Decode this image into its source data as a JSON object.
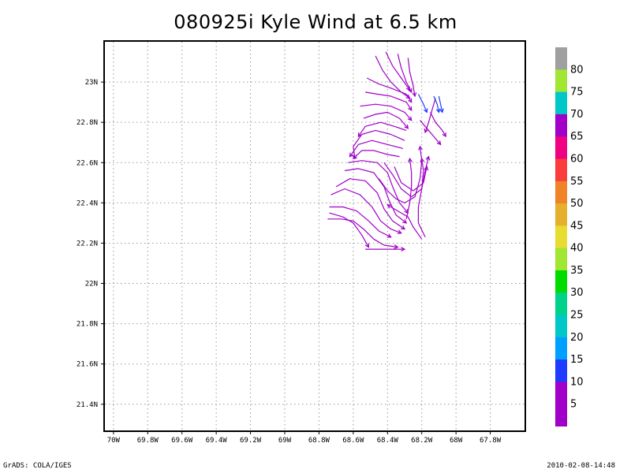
{
  "title": "080925i Kyle Wind at 6.5 km",
  "footer": {
    "left": "GrADS: COLA/IGES",
    "right": "2010-02-08-14:48"
  },
  "map": {
    "lon_range": [
      -70.05,
      -67.6
    ],
    "lat_range": [
      21.27,
      23.2
    ],
    "lon_ticks": [
      {
        "v": -70.0,
        "label": "70W"
      },
      {
        "v": -69.8,
        "label": "69.8W"
      },
      {
        "v": -69.6,
        "label": "69.6W"
      },
      {
        "v": -69.4,
        "label": "69.4W"
      },
      {
        "v": -69.2,
        "label": "69.2W"
      },
      {
        "v": -69.0,
        "label": "69W"
      },
      {
        "v": -68.8,
        "label": "68.8W"
      },
      {
        "v": -68.6,
        "label": "68.6W"
      },
      {
        "v": -68.4,
        "label": "68.4W"
      },
      {
        "v": -68.2,
        "label": "68.2W"
      },
      {
        "v": -68.0,
        "label": "68W"
      },
      {
        "v": -67.8,
        "label": "67.8W"
      }
    ],
    "lat_ticks": [
      {
        "v": 23.0,
        "label": "23N"
      },
      {
        "v": 22.8,
        "label": "22.8N"
      },
      {
        "v": 22.6,
        "label": "22.6N"
      },
      {
        "v": 22.4,
        "label": "22.4N"
      },
      {
        "v": 22.2,
        "label": "22.2N"
      },
      {
        "v": 22.0,
        "label": "22N"
      },
      {
        "v": 21.8,
        "label": "21.8N"
      },
      {
        "v": 21.6,
        "label": "21.6N"
      },
      {
        "v": 21.4,
        "label": "21.4N"
      }
    ],
    "grid": "dotted"
  },
  "colorbar": {
    "labels": [
      "80",
      "75",
      "70",
      "65",
      "60",
      "55",
      "50",
      "45",
      "40",
      "35",
      "30",
      "25",
      "20",
      "15",
      "10",
      "5"
    ],
    "colors": [
      "#a0a0a0",
      "#a0e632",
      "#00c8c8",
      "#a000c8",
      "#f00082",
      "#fa3c3c",
      "#f08228",
      "#e6af2d",
      "#e6dc32",
      "#a0e632",
      "#00dc00",
      "#00d28c",
      "#00c8c8",
      "#00a0ff",
      "#1e3cff",
      "#a000c8"
    ]
  },
  "streamlines": [
    {
      "color": "#a000c8",
      "points": [
        [
          -68.41,
          23.15
        ],
        [
          -68.37,
          23.08
        ],
        [
          -68.32,
          23.02
        ],
        [
          -68.27,
          22.96
        ]
      ]
    },
    {
      "color": "#a000c8",
      "points": [
        [
          -68.47,
          23.13
        ],
        [
          -68.43,
          23.06
        ],
        [
          -68.38,
          23.0
        ],
        [
          -68.32,
          22.95
        ],
        [
          -68.27,
          22.92
        ]
      ]
    },
    {
      "color": "#a000c8",
      "points": [
        [
          -68.34,
          23.14
        ],
        [
          -68.32,
          23.07
        ],
        [
          -68.29,
          23.0
        ],
        [
          -68.26,
          22.95
        ]
      ]
    },
    {
      "color": "#a000c8",
      "points": [
        [
          -68.28,
          23.12
        ],
        [
          -68.27,
          23.05
        ],
        [
          -68.25,
          22.98
        ],
        [
          -68.24,
          22.93
        ]
      ]
    },
    {
      "color": "#a000c8",
      "points": [
        [
          -68.52,
          23.02
        ],
        [
          -68.45,
          22.99
        ],
        [
          -68.38,
          22.97
        ],
        [
          -68.29,
          22.94
        ],
        [
          -68.26,
          22.9
        ]
      ]
    },
    {
      "color": "#a000c8",
      "points": [
        [
          -68.53,
          22.95
        ],
        [
          -68.46,
          22.94
        ],
        [
          -68.38,
          22.93
        ],
        [
          -68.29,
          22.9
        ],
        [
          -68.26,
          22.86
        ]
      ]
    },
    {
      "color": "#a000c8",
      "points": [
        [
          -68.56,
          22.88
        ],
        [
          -68.47,
          22.89
        ],
        [
          -68.38,
          22.88
        ],
        [
          -68.3,
          22.85
        ],
        [
          -68.26,
          22.81
        ]
      ]
    },
    {
      "color": "#a000c8",
      "points": [
        [
          -68.54,
          22.82
        ],
        [
          -68.47,
          22.84
        ],
        [
          -68.4,
          22.85
        ],
        [
          -68.33,
          22.82
        ],
        [
          -68.28,
          22.77
        ]
      ]
    },
    {
      "color": "#a000c8",
      "points": [
        [
          -68.29,
          22.76
        ],
        [
          -68.36,
          22.78
        ],
        [
          -68.44,
          22.8
        ],
        [
          -68.53,
          22.78
        ],
        [
          -68.57,
          22.73
        ]
      ]
    },
    {
      "color": "#a000c8",
      "points": [
        [
          -68.3,
          22.71
        ],
        [
          -68.38,
          22.74
        ],
        [
          -68.47,
          22.76
        ],
        [
          -68.55,
          22.74
        ],
        [
          -68.6,
          22.68
        ],
        [
          -68.59,
          22.62
        ]
      ]
    },
    {
      "color": "#a000c8",
      "points": [
        [
          -68.31,
          22.67
        ],
        [
          -68.4,
          22.69
        ],
        [
          -68.49,
          22.71
        ],
        [
          -68.57,
          22.69
        ],
        [
          -68.62,
          22.63
        ]
      ]
    },
    {
      "color": "#a000c8",
      "points": [
        [
          -68.33,
          22.63
        ],
        [
          -68.4,
          22.64
        ],
        [
          -68.48,
          22.66
        ],
        [
          -68.55,
          22.66
        ],
        [
          -68.6,
          22.62
        ]
      ]
    },
    {
      "color": "#a000c8",
      "points": [
        [
          -68.63,
          22.6
        ],
        [
          -68.55,
          22.61
        ],
        [
          -68.46,
          22.6
        ],
        [
          -68.4,
          22.55
        ],
        [
          -68.37,
          22.48
        ],
        [
          -68.33,
          22.4
        ],
        [
          -68.28,
          22.35
        ]
      ]
    },
    {
      "color": "#a000c8",
      "points": [
        [
          -68.65,
          22.56
        ],
        [
          -68.57,
          22.57
        ],
        [
          -68.48,
          22.55
        ],
        [
          -68.42,
          22.48
        ],
        [
          -68.39,
          22.41
        ],
        [
          -68.35,
          22.34
        ],
        [
          -68.29,
          22.3
        ]
      ]
    },
    {
      "color": "#a000c8",
      "points": [
        [
          -68.7,
          22.48
        ],
        [
          -68.62,
          22.52
        ],
        [
          -68.53,
          22.51
        ],
        [
          -68.46,
          22.45
        ],
        [
          -68.42,
          22.37
        ],
        [
          -68.37,
          22.31
        ],
        [
          -68.3,
          22.27
        ]
      ]
    },
    {
      "color": "#a000c8",
      "points": [
        [
          -68.73,
          22.44
        ],
        [
          -68.65,
          22.47
        ],
        [
          -68.56,
          22.44
        ],
        [
          -68.49,
          22.38
        ],
        [
          -68.44,
          22.31
        ],
        [
          -68.38,
          22.27
        ],
        [
          -68.32,
          22.25
        ]
      ]
    },
    {
      "color": "#a000c8",
      "points": [
        [
          -68.74,
          22.38
        ],
        [
          -68.66,
          22.38
        ],
        [
          -68.58,
          22.36
        ],
        [
          -68.51,
          22.31
        ],
        [
          -68.45,
          22.26
        ],
        [
          -68.38,
          22.23
        ]
      ]
    },
    {
      "color": "#a000c8",
      "points": [
        [
          -68.75,
          22.32
        ],
        [
          -68.67,
          22.32
        ],
        [
          -68.6,
          22.31
        ],
        [
          -68.54,
          22.27
        ],
        [
          -68.48,
          22.22
        ],
        [
          -68.42,
          22.19
        ],
        [
          -68.34,
          22.18
        ]
      ]
    },
    {
      "color": "#a000c8",
      "points": [
        [
          -68.74,
          22.35
        ],
        [
          -68.66,
          22.33
        ],
        [
          -68.6,
          22.3
        ],
        [
          -68.55,
          22.24
        ],
        [
          -68.51,
          22.18
        ]
      ]
    },
    {
      "color": "#a000c8",
      "points": [
        [
          -68.29,
          22.32
        ],
        [
          -68.27,
          22.4
        ],
        [
          -68.26,
          22.48
        ],
        [
          -68.26,
          22.55
        ],
        [
          -68.27,
          22.62
        ]
      ]
    },
    {
      "color": "#a000c8",
      "points": [
        [
          -68.45,
          22.52
        ],
        [
          -68.4,
          22.46
        ],
        [
          -68.35,
          22.42
        ],
        [
          -68.3,
          22.4
        ],
        [
          -68.24,
          22.43
        ],
        [
          -68.21,
          22.52
        ],
        [
          -68.2,
          22.61
        ],
        [
          -68.21,
          22.68
        ]
      ]
    },
    {
      "color": "#a000c8",
      "points": [
        [
          -68.42,
          22.6
        ],
        [
          -68.37,
          22.54
        ],
        [
          -68.32,
          22.47
        ],
        [
          -68.26,
          22.43
        ],
        [
          -68.2,
          22.47
        ],
        [
          -68.18,
          22.56
        ],
        [
          -68.16,
          22.63
        ]
      ]
    },
    {
      "color": "#a000c8",
      "points": [
        [
          -68.36,
          22.58
        ],
        [
          -68.32,
          22.5
        ],
        [
          -68.25,
          22.46
        ],
        [
          -68.19,
          22.5
        ],
        [
          -68.17,
          22.58
        ]
      ]
    },
    {
      "color": "#a000c8",
      "points": [
        [
          -68.18,
          22.23
        ],
        [
          -68.22,
          22.3
        ],
        [
          -68.22,
          22.38
        ],
        [
          -68.2,
          22.47
        ],
        [
          -68.19,
          22.56
        ],
        [
          -68.2,
          22.62
        ]
      ]
    },
    {
      "color": "#a000c8",
      "points": [
        [
          -68.2,
          22.22
        ],
        [
          -68.25,
          22.28
        ],
        [
          -68.28,
          22.33
        ],
        [
          -68.34,
          22.36
        ],
        [
          -68.4,
          22.39
        ]
      ]
    },
    {
      "color": "#a000c8",
      "points": [
        [
          -68.53,
          22.17
        ],
        [
          -68.46,
          22.17
        ],
        [
          -68.38,
          22.17
        ],
        [
          -68.3,
          22.17
        ]
      ]
    },
    {
      "color": "#a000c8",
      "points": [
        [
          -68.12,
          22.92
        ],
        [
          -68.14,
          22.86
        ],
        [
          -68.16,
          22.8
        ],
        [
          -68.18,
          22.75
        ]
      ]
    },
    {
      "color": "#a000c8",
      "points": [
        [
          -68.21,
          22.81
        ],
        [
          -68.17,
          22.77
        ],
        [
          -68.13,
          22.73
        ],
        [
          -68.09,
          22.69
        ]
      ]
    },
    {
      "color": "#a000c8",
      "points": [
        [
          -68.15,
          22.85
        ],
        [
          -68.12,
          22.8
        ],
        [
          -68.08,
          22.76
        ],
        [
          -68.06,
          22.73
        ]
      ]
    },
    {
      "color": "#1e3cff",
      "points": [
        [
          -68.22,
          22.94
        ],
        [
          -68.19,
          22.89
        ],
        [
          -68.17,
          22.85
        ]
      ]
    },
    {
      "color": "#1e3cff",
      "points": [
        [
          -68.13,
          22.93
        ],
        [
          -68.11,
          22.89
        ],
        [
          -68.1,
          22.85
        ]
      ]
    },
    {
      "color": "#1e3cff",
      "points": [
        [
          -68.1,
          22.93
        ],
        [
          -68.09,
          22.89
        ],
        [
          -68.08,
          22.85
        ]
      ]
    }
  ]
}
